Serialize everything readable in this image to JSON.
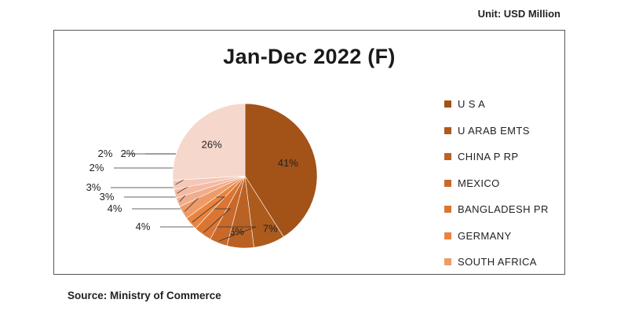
{
  "unit_label": "Unit: USD Million",
  "source_label": "Source: Ministry of Commerce",
  "chart_data": {
    "type": "pie",
    "title": "Jan-Dec  2022 (F)",
    "legend_position": "right",
    "slices": [
      {
        "name": "U S A",
        "value": 41,
        "label": "41%",
        "color": "#a35218"
      },
      {
        "name": "U ARAB EMTS",
        "value": 7,
        "label": "7%",
        "color": "#ad5a1d"
      },
      {
        "name": "CHINA P RP",
        "value": 6,
        "label": "6%",
        "color": "#ba6223"
      },
      {
        "name": "MEXICO",
        "value": 4,
        "label": "4%",
        "color": "#c8692a"
      },
      {
        "name": "BANGLADESH PR",
        "value": 4,
        "label": "4%",
        "color": "#db7533"
      },
      {
        "name": "GERMANY",
        "value": 3,
        "label": "3%",
        "color": "#e8843f"
      },
      {
        "name": "SOUTH AFRICA",
        "value": 3,
        "label": "3%",
        "color": "#ee9b68"
      },
      {
        "name": "",
        "value": 2,
        "label": "2%",
        "color": "#f2ad8d"
      },
      {
        "name": "",
        "value": 2,
        "label": "2%",
        "color": "#f4bba2"
      },
      {
        "name": "",
        "value": 2,
        "label": "2%",
        "color": "#f5c7b6"
      },
      {
        "name": "",
        "value": 26,
        "label": "26%",
        "color": "#f6d7cc"
      }
    ]
  }
}
